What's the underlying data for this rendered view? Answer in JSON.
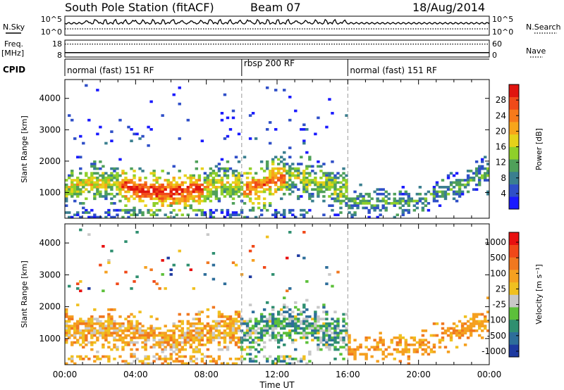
{
  "header": {
    "station": "South Pole Station (fitACF)",
    "beam": "Beam 07",
    "date": "18/Aug/2014"
  },
  "left_labels": {
    "nsky": "N.Sky",
    "freq": "Freq.",
    "freq_unit": "[MHz]",
    "cpid": "CPID"
  },
  "right_labels": {
    "nsearch": "N.Search",
    "nave": "Nave"
  },
  "chart_data": [
    {
      "type": "line",
      "panel": "noise",
      "left_ticks": [
        "10^5",
        "10^0"
      ],
      "right_ticks": [
        "10^5",
        "10^0"
      ],
      "series": [
        {
          "name": "N.Sky",
          "style": "solid"
        },
        {
          "name": "N.Search",
          "style": "dotted"
        }
      ]
    },
    {
      "type": "line",
      "panel": "frequency",
      "left_ticks": [
        "18",
        "8"
      ],
      "right_ticks": [
        "60",
        "0"
      ],
      "series": [
        {
          "name": "Freq.",
          "style": "solid",
          "value": 10.6
        },
        {
          "name": "Nave",
          "style": "dotted",
          "value": 46
        }
      ]
    },
    {
      "type": "table",
      "panel": "cpid",
      "segments": [
        {
          "label": "normal (fast) 151 RF",
          "start_hour": 0,
          "end_hour": 10
        },
        {
          "label": "rbsp 200 RF",
          "start_hour": 10,
          "end_hour": 16
        },
        {
          "label": "normal (fast) 151 RF",
          "start_hour": 16,
          "end_hour": 24
        }
      ]
    },
    {
      "type": "heatmap",
      "panel": "power",
      "ylabel": "Slant Range [km]",
      "xlim": [
        0,
        24
      ],
      "ylim": [
        180,
        4600
      ],
      "y_ticks": [
        1000,
        2000,
        3000,
        4000
      ],
      "colorbar": {
        "label": "Power [dB]",
        "ticks": [
          "4",
          "8",
          "12",
          "16",
          "20",
          "24",
          "28"
        ],
        "colors": [
          "#1a1aff",
          "#2f4fc8",
          "#3a7f8f",
          "#4fa05a",
          "#8fd02a",
          "#e6d21a",
          "#f7a51a",
          "#f77a1a",
          "#f04a1a",
          "#e0140f"
        ]
      }
    },
    {
      "type": "heatmap",
      "panel": "velocity",
      "ylabel": "Slant Range [km]",
      "xlabel": "Time UT",
      "xlim": [
        0,
        24
      ],
      "ylim": [
        180,
        4600
      ],
      "y_ticks": [
        1000,
        2000,
        3000,
        4000
      ],
      "x_ticks": [
        "00:00",
        "04:00",
        "08:00",
        "12:00",
        "16:00",
        "20:00",
        "00:00"
      ],
      "colorbar": {
        "label": "Velocity [m s⁻¹]",
        "ticks": [
          "1000",
          "500",
          "100",
          "25",
          "-25",
          "-100",
          "-500",
          "-1000"
        ],
        "colors": [
          "#1e3aa0",
          "#2e6e9a",
          "#2f8f70",
          "#5cc03a",
          "#c8c8c8",
          "#f0c020",
          "#f5a020",
          "#f07820",
          "#f04818",
          "#e81010"
        ]
      }
    }
  ]
}
